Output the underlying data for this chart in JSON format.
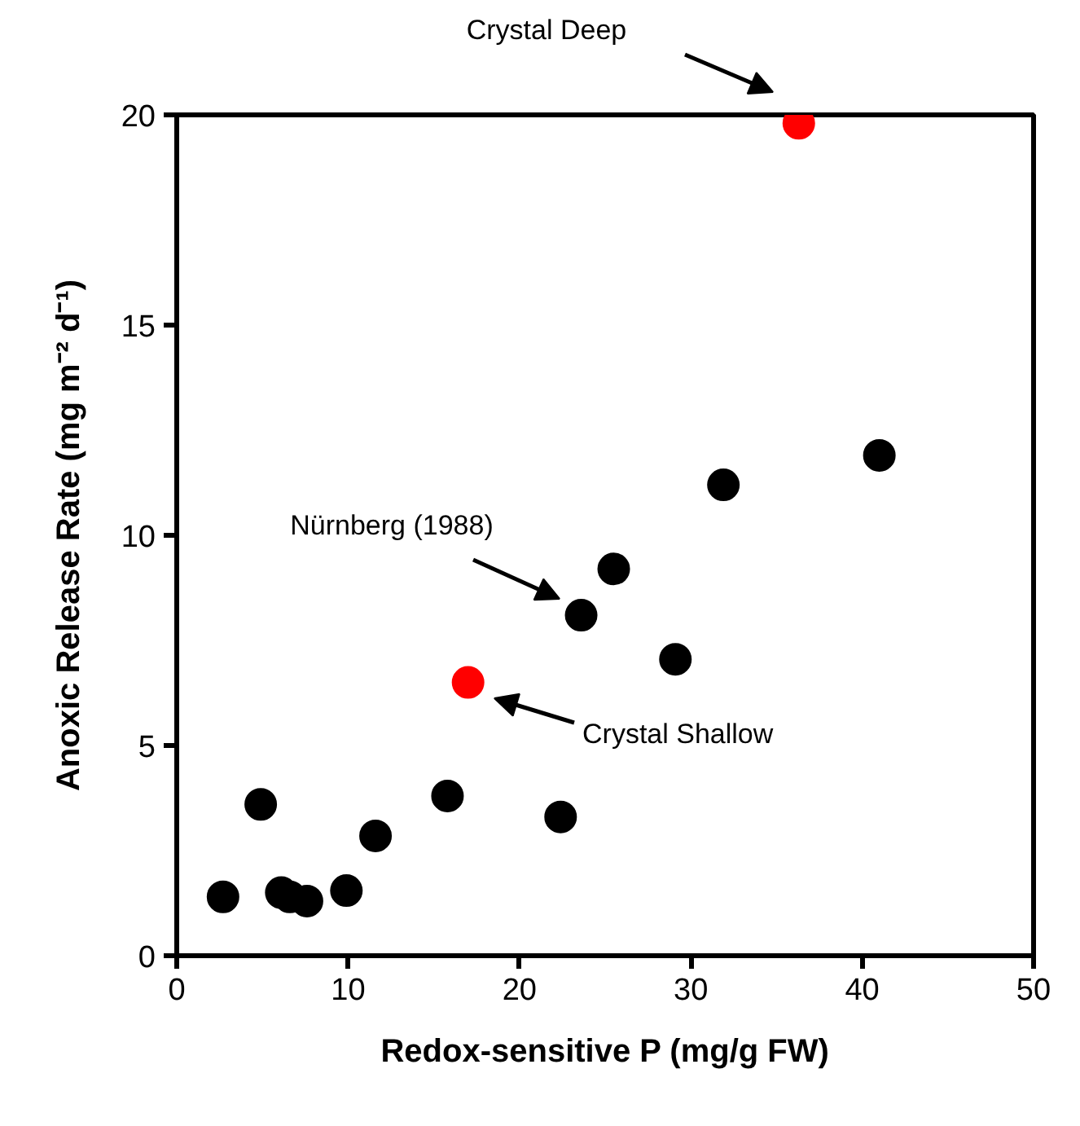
{
  "chart_data": {
    "type": "scatter",
    "xlabel": "Redox-sensitive P (mg/g FW)",
    "ylabel": "Anoxic Release Rate (mg m⁻² d⁻¹)",
    "xlim": [
      0,
      50
    ],
    "ylim": [
      0,
      20
    ],
    "xticks": [
      0,
      10,
      20,
      30,
      40,
      50
    ],
    "yticks": [
      0,
      5,
      10,
      15,
      20
    ],
    "grid": false,
    "marker": "circle",
    "series": [
      {
        "color": "#000000",
        "x": [
          2.7,
          4.9,
          6.1,
          6.6,
          7.6,
          9.9,
          11.6,
          15.8,
          22.4,
          23.6,
          25.5,
          29.1,
          31.9,
          41.0
        ],
        "values": [
          1.4,
          3.6,
          1.5,
          1.4,
          1.3,
          1.55,
          2.85,
          3.8,
          3.3,
          8.1,
          9.2,
          7.05,
          11.2,
          11.9
        ]
      },
      {
        "color": "#ff0000",
        "x": [
          17.0,
          36.3
        ],
        "values": [
          6.5,
          19.8
        ]
      }
    ],
    "annotations": [
      "Crystal Deep",
      "Nürnberg (1988)",
      "Crystal Shallow"
    ]
  }
}
